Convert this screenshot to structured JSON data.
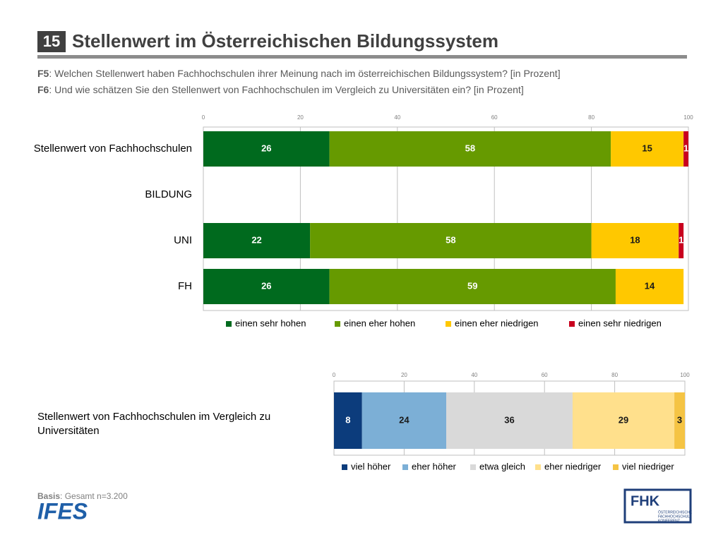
{
  "header": {
    "number": "15",
    "title": "Stellenwert im Österreichischen Bildungssystem"
  },
  "questions": [
    {
      "label": "F5",
      "text": ": Welchen Stellenwert haben Fachhochschulen ihrer Meinung nach im österreichischen Bildungssystem? [in Prozent]"
    },
    {
      "label": "F6",
      "text": ": Und wie schätzen Sie den Stellenwert von Fachhochschulen im Vergleich zu Universitäten ein? [in Prozent]"
    }
  ],
  "chart_data": [
    {
      "type": "bar",
      "orientation": "horizontal",
      "stacked": true,
      "categories": [
        "Stellenwert von Fachhochschulen",
        "BILDUNG",
        "UNI",
        "FH"
      ],
      "series": [
        {
          "name": "einen sehr hohen",
          "color": "#006a1e",
          "values": [
            26,
            null,
            22,
            26
          ]
        },
        {
          "name": "einen eher hohen",
          "color": "#669a00",
          "values": [
            58,
            null,
            58,
            59
          ]
        },
        {
          "name": "einen eher niedrigen",
          "color": "#ffc800",
          "values": [
            15,
            null,
            18,
            14
          ]
        },
        {
          "name": "einen sehr niedrigen",
          "color": "#c8001e",
          "values": [
            1,
            null,
            1,
            null
          ]
        }
      ],
      "xlim": [
        0,
        100
      ],
      "xticks": [
        0,
        20,
        40,
        60,
        80,
        100
      ],
      "grid": true,
      "legend": "bottom"
    },
    {
      "type": "bar",
      "orientation": "horizontal",
      "stacked": true,
      "categories": [
        "Stellenwert von Fachhochschulen im Vergleich zu Universitäten"
      ],
      "series": [
        {
          "name": "viel höher",
          "color": "#0c3c7c",
          "values": [
            8
          ]
        },
        {
          "name": "eher höher",
          "color": "#7cafd6",
          "values": [
            24
          ]
        },
        {
          "name": "etwa gleich",
          "color": "#d9d9d9",
          "values": [
            36
          ]
        },
        {
          "name": "eher niedriger",
          "color": "#ffe08c",
          "values": [
            29
          ]
        },
        {
          "name": "viel niedriger",
          "color": "#f5c444",
          "values": [
            3
          ]
        }
      ],
      "xlim": [
        0,
        100
      ],
      "xticks": [
        0,
        20,
        40,
        60,
        80,
        100
      ],
      "grid": true,
      "legend": "bottom"
    }
  ],
  "footer": {
    "basis_label": "Basis",
    "basis_text": ": Gesamt n=3.200",
    "left_logo": "IFES",
    "right_logo": "FHK",
    "right_logo_text": [
      "ÖSTERREICHISCHE",
      "FACHHOCHSCHUL",
      "KONFERENZ"
    ]
  }
}
